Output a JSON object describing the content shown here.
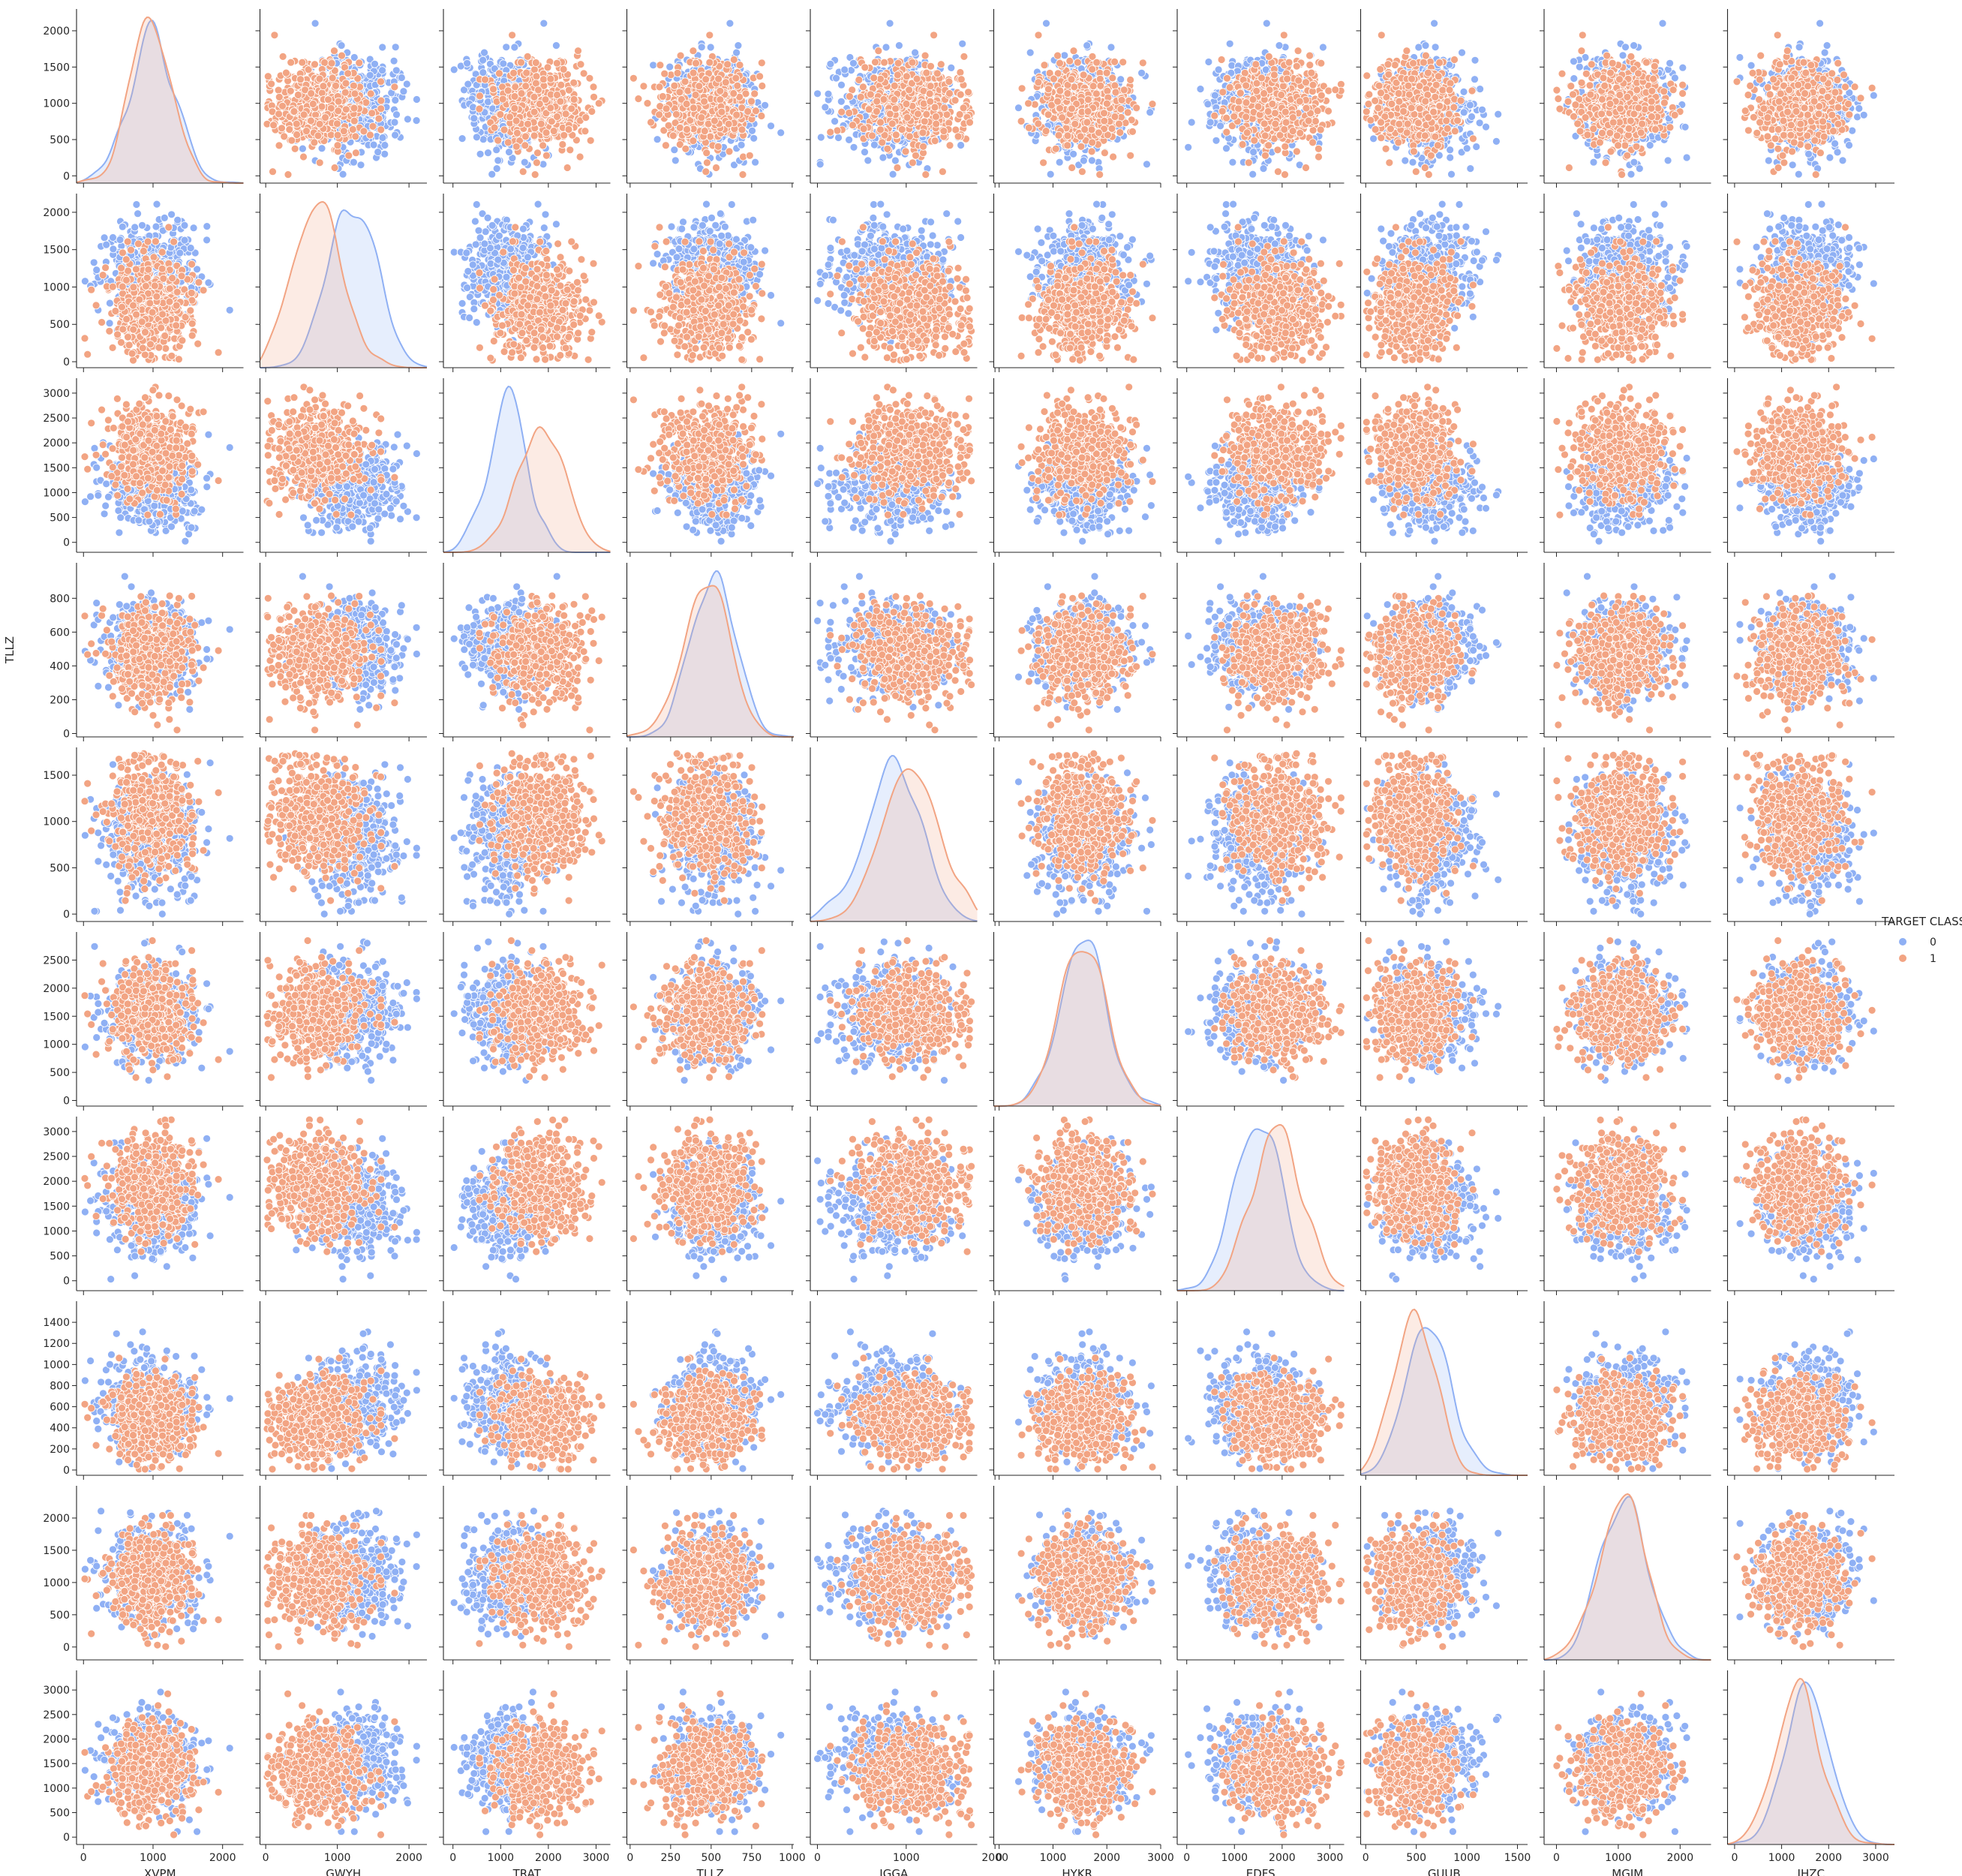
{
  "chart_data": {
    "type": "scatter",
    "subtype": "pairplot",
    "variables": [
      "XVPM",
      "GWYH",
      "TRAT",
      "TLLZ",
      "IGGA",
      "HYKR",
      "EDFS",
      "GUUB",
      "MGJM",
      "JHZC"
    ],
    "hue": "TARGET CLASS",
    "hue_levels": [
      "0",
      "1"
    ],
    "colors": {
      "0": "#8fb0f4",
      "1": "#f2a483"
    },
    "diag_kind": "kde",
    "point_edge_color": "#ffffff",
    "points_per_class": 500,
    "axis_limits": [
      [
        -100,
        2300
      ],
      [
        -80,
        2250
      ],
      [
        -200,
        3300
      ],
      [
        -20,
        1010
      ],
      [
        -80,
        1800
      ],
      [
        -100,
        3000
      ],
      [
        -200,
        3300
      ],
      [
        -50,
        1600
      ],
      [
        -200,
        2500
      ],
      [
        -150,
        3400
      ]
    ],
    "y_ticks": [
      [
        "0",
        "500",
        "1000",
        "1500",
        "2000"
      ],
      [
        "0",
        "500",
        "1000",
        "1500",
        "2000"
      ],
      [
        "0",
        "500",
        "1000",
        "1500",
        "2000",
        "2500",
        "3000"
      ],
      [
        "0",
        "200",
        "400",
        "600",
        "800"
      ],
      [
        "0",
        "500",
        "1000",
        "1500"
      ],
      [
        "0",
        "500",
        "1000",
        "1500",
        "2000",
        "2500"
      ],
      [
        "0",
        "500",
        "1000",
        "1500",
        "2000",
        "2500",
        "3000"
      ],
      [
        "0",
        "200",
        "400",
        "600",
        "800",
        "1000",
        "1200",
        "1400"
      ],
      [
        "0",
        "500",
        "1000",
        "1500",
        "2000"
      ],
      [
        "0",
        "500",
        "1000",
        "1500",
        "2000",
        "2500",
        "3000"
      ]
    ],
    "x_ticks": [
      [
        "0",
        "1000",
        "2000"
      ],
      [
        "0",
        "1000",
        "2000"
      ],
      [
        "0",
        "1000",
        "2000",
        "3000"
      ],
      [
        "0",
        "250",
        "500",
        "750",
        "1000"
      ],
      [
        "0",
        "1000",
        "2000"
      ],
      [
        "0",
        "1000",
        "2000",
        "3000"
      ],
      [
        "0",
        "1000",
        "2000",
        "3000"
      ],
      [
        "0",
        "500",
        "1000",
        "1500"
      ],
      [
        "0",
        "1000",
        "2000"
      ],
      [
        "0",
        "1000",
        "2000",
        "3000"
      ]
    ],
    "class_distribution": {
      "0": {
        "mean": [
          1000,
          1200,
          1150,
          520,
          850,
          1580,
          1500,
          620,
          1100,
          1550
        ],
        "sd": [
          320,
          330,
          400,
          130,
          300,
          420,
          470,
          220,
          350,
          480
        ]
      },
      "1": {
        "mean": [
          950,
          750,
          1850,
          470,
          1050,
          1550,
          1900,
          480,
          1050,
          1350
        ],
        "sd": [
          300,
          320,
          500,
          140,
          310,
          420,
          480,
          210,
          360,
          470
        ]
      }
    },
    "x_axis_labels": [
      "XVPM",
      "GWYH",
      "TRAT",
      "TLLZ",
      "IGGA",
      "HYKR",
      "EDFS",
      "GUUB",
      "MGJM",
      "JHZC"
    ],
    "y_axis_labels": [
      "",
      "",
      "",
      "TLLZ",
      "",
      "",
      "",
      "",
      "",
      ""
    ],
    "legend": {
      "title": "TARGET CLASS",
      "entries": [
        "0",
        "1"
      ],
      "placement": "center-right"
    },
    "grid": false
  }
}
